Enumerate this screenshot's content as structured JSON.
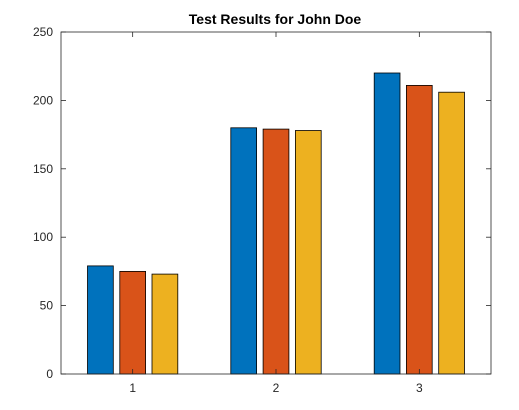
{
  "chart_data": {
    "type": "bar",
    "title": "Test Results for John Doe",
    "xlabel": "",
    "ylabel": "",
    "categories": [
      "1",
      "2",
      "3"
    ],
    "series": [
      {
        "values": [
          79,
          180,
          220
        ],
        "color": "#0072BD"
      },
      {
        "values": [
          75,
          179,
          211
        ],
        "color": "#D95319"
      },
      {
        "values": [
          73,
          178,
          206
        ],
        "color": "#EDB120"
      }
    ],
    "ylim": [
      0,
      250
    ],
    "yticks": [
      0,
      50,
      100,
      150,
      200,
      250
    ],
    "grid": false,
    "legend": "none"
  }
}
